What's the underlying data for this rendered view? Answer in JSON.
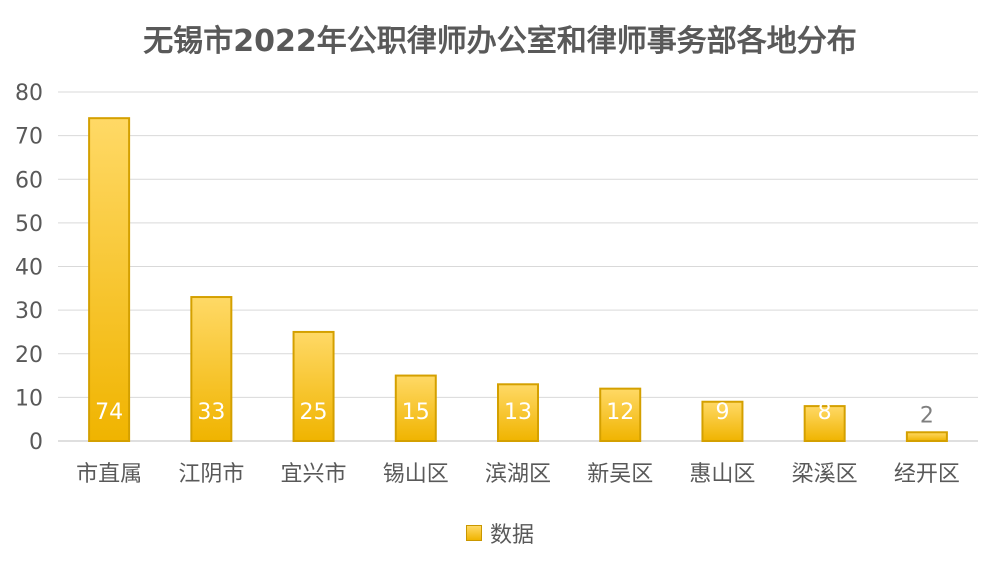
{
  "chart_data": {
    "type": "bar",
    "title": "无锡市2022年公职律师办公室和律师事务部各地分布",
    "xlabel": "",
    "ylabel": "",
    "ylim": [
      0,
      80
    ],
    "yticks": [
      0,
      10,
      20,
      30,
      40,
      50,
      60,
      70,
      80
    ],
    "categories": [
      "市直属",
      "江阴市",
      "宜兴市",
      "锡山区",
      "滨湖区",
      "新吴区",
      "惠山区",
      "梁溪区",
      "经开区"
    ],
    "series": [
      {
        "name": "数据",
        "values": [
          74,
          33,
          25,
          15,
          13,
          12,
          9,
          8,
          2
        ]
      }
    ],
    "grid": true,
    "legend_position": "bottom",
    "bar_color_top": "#ffd966",
    "bar_color_bottom": "#f0b400",
    "bar_border": "#d4a000"
  }
}
